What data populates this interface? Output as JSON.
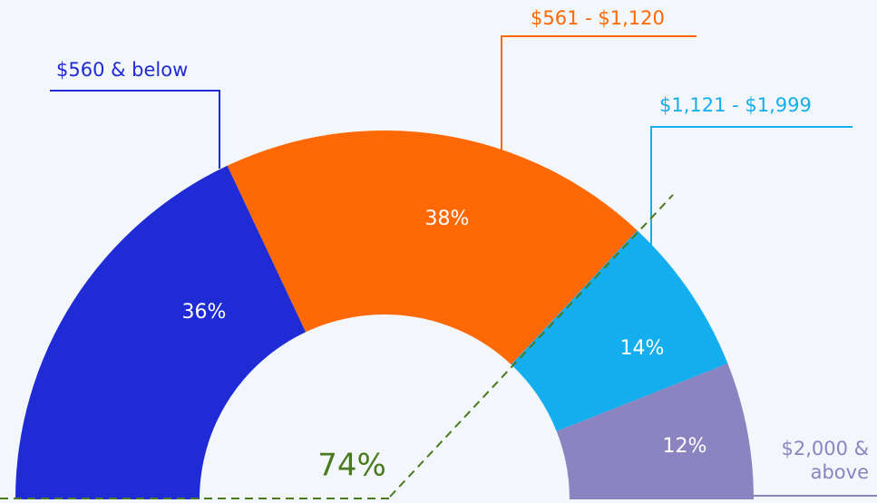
{
  "chart_data": {
    "type": "semi-donut",
    "categories": [
      "$560 & below",
      "$561 - $1,120",
      "$1,121 - $1,999",
      "$2,000 & above"
    ],
    "values": [
      36,
      38,
      14,
      12
    ],
    "value_labels": [
      "36%",
      "38%",
      "14%",
      "12%"
    ],
    "colors": [
      "#1f2bd4",
      "#ff6905",
      "#14aeef",
      "#8c84c0"
    ],
    "annotation": "74%"
  }
}
